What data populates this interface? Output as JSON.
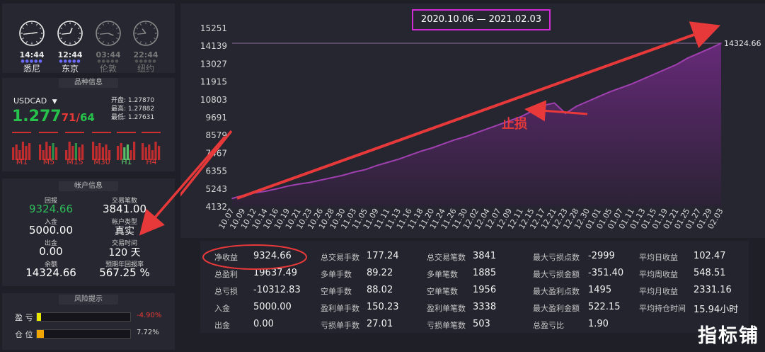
{
  "clocks": [
    {
      "time": "14:44",
      "city": "悉尼",
      "active": true
    },
    {
      "time": "12:44",
      "city": "东京",
      "active": true
    },
    {
      "time": "03:44",
      "city": "伦敦",
      "active": false
    },
    {
      "time": "22:44",
      "city": "纽约",
      "active": false
    }
  ],
  "symbol_section": {
    "title": "品种信息",
    "symbol": "USDCAD",
    "price_main": "1.277",
    "price_red": "71",
    "price_sep": "/",
    "price_green": "64",
    "open_label": "开盘:",
    "open": "1.27870",
    "high_label": "最高:",
    "high": "1.27882",
    "low_label": "最低:",
    "low": "1.27631",
    "timeframes": [
      "M1",
      "M5",
      "M15",
      "M30",
      "H1",
      "H4"
    ],
    "bar_colors": {
      "red": "#d32f2f",
      "green": "#2e9e4a",
      "active": "#5fcf6f"
    }
  },
  "account": {
    "title": "帐户信息",
    "profit_label": "回报",
    "profit": "9324.66",
    "trades_label": "交易笔数",
    "trades": "3841.00",
    "deposit_label": "入金",
    "deposit": "5000.00",
    "type_label": "帐户类型",
    "type": "真实",
    "withdraw_label": "出金",
    "withdraw": "0.00",
    "time_label": "交易时间",
    "time": "120 天",
    "balance_label": "余额",
    "balance": "14324.66",
    "annual_label": "预期年回报率",
    "annual": "567.25 %"
  },
  "risk": {
    "title": "风险提示",
    "pl_label": "盈  亏",
    "pl_value": "-4.90%",
    "pl_fraction": 0.049,
    "pos_label": "仓  位",
    "pos_value": "7.72%",
    "pos_fraction": 0.0772
  },
  "chart_data": {
    "type": "area",
    "title": "2020.10.06 — 2021.02.03",
    "y_ticks": [
      15251,
      14139,
      13027,
      11915,
      10803,
      9691,
      8579,
      7467,
      6355,
      5243,
      4132
    ],
    "ylim": [
      4132,
      15251
    ],
    "last_value_label": "14324.66",
    "x": [
      "10.07",
      "10.09",
      "10.12",
      "10.14",
      "10.16",
      "10.19",
      "10.21",
      "10.23",
      "10.26",
      "10.28",
      "10.30",
      "11.03",
      "11.05",
      "11.09",
      "11.11",
      "11.13",
      "11.16",
      "11.18",
      "11.20",
      "11.24",
      "11.26",
      "11.30",
      "12.02",
      "12.04",
      "12.07",
      "12.09",
      "12.11",
      "12.15",
      "12.17",
      "12.21",
      "12.23",
      "12.28",
      "12.30",
      "01.01",
      "01.05",
      "01.07",
      "01.11",
      "01.13",
      "01.15",
      "01.19",
      "01.21",
      "01.25",
      "01.27",
      "01.29",
      "02.03"
    ],
    "values": [
      4650,
      4850,
      5000,
      5100,
      5250,
      5420,
      5550,
      5650,
      5800,
      5950,
      6100,
      6300,
      6450,
      6700,
      6900,
      7100,
      7350,
      7600,
      7800,
      8050,
      8300,
      8500,
      8750,
      9000,
      9250,
      9500,
      9750,
      10100,
      10450,
      10600,
      9950,
      10400,
      10700,
      11000,
      11300,
      11550,
      11800,
      12100,
      12400,
      12700,
      13000,
      13400,
      13700,
      14000,
      14324.66
    ],
    "annotation": "止损",
    "colors": {
      "line": "#a040b0",
      "fill_top": "#6a2a7c",
      "fill_bottom": "#2c2236",
      "arrow": "#e8393a",
      "title_border": "#d12bd6"
    }
  },
  "stats": {
    "columns": [
      [
        {
          "label": "净收益",
          "value": "9324.66"
        },
        {
          "label": "总盈利",
          "value": "19637.49"
        },
        {
          "label": "总亏损",
          "value": "-10312.83"
        },
        {
          "label": "入金",
          "value": "5000.00"
        },
        {
          "label": "出金",
          "value": "0.00"
        }
      ],
      [
        {
          "label": "总交易手数",
          "value": "177.24"
        },
        {
          "label": "多单手数",
          "value": "89.22"
        },
        {
          "label": "空单手数",
          "value": "88.02"
        },
        {
          "label": "盈利单手数",
          "value": "150.23"
        },
        {
          "label": "亏损单手数",
          "value": "27.01"
        }
      ],
      [
        {
          "label": "总交易笔数",
          "value": "3841"
        },
        {
          "label": "多单笔数",
          "value": "1885"
        },
        {
          "label": "空单笔数",
          "value": "1956"
        },
        {
          "label": "盈利单笔数",
          "value": "3338"
        },
        {
          "label": "亏损单笔数",
          "value": "503"
        }
      ],
      [
        {
          "label": "最大亏损点数",
          "value": "-2999"
        },
        {
          "label": "最大亏损金额",
          "value": "-351.40"
        },
        {
          "label": "最大盈利点数",
          "value": "1495"
        },
        {
          "label": "最大盈利金额",
          "value": "522.15"
        },
        {
          "label": "总盈亏比",
          "value": "1.90"
        }
      ],
      [
        {
          "label": "平均日收益",
          "value": "102.47"
        },
        {
          "label": "平均周收益",
          "value": "548.51"
        },
        {
          "label": "平均月收益",
          "value": "2331.16"
        },
        {
          "label": "平均持仓时间",
          "value": "15.94小时"
        }
      ]
    ]
  },
  "watermark": "指标铺"
}
